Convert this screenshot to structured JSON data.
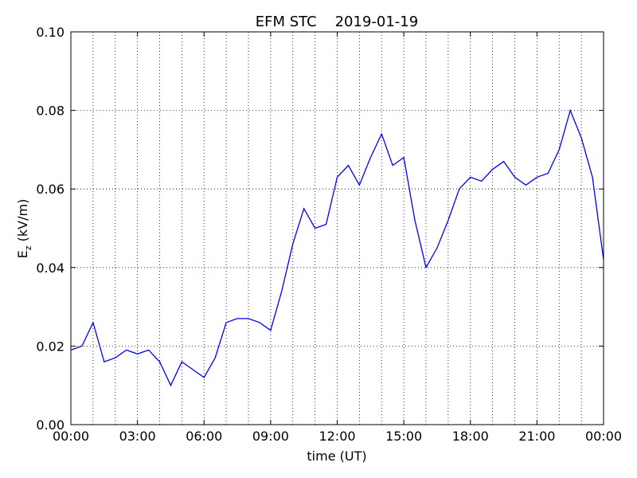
{
  "chart_data": {
    "type": "line",
    "title": "EFM STC    2019-01-19",
    "xlabel": "time (UT)",
    "ylabel": [
      "E",
      "z",
      " (kV/m)"
    ],
    "xlim": [
      0,
      24
    ],
    "ylim": [
      0,
      0.1
    ],
    "xticks": [
      {
        "value": 0,
        "label": "00:00"
      },
      {
        "value": 3,
        "label": "03:00"
      },
      {
        "value": 6,
        "label": "06:00"
      },
      {
        "value": 9,
        "label": "09:00"
      },
      {
        "value": 12,
        "label": "12:00"
      },
      {
        "value": 15,
        "label": "15:00"
      },
      {
        "value": 18,
        "label": "18:00"
      },
      {
        "value": 21,
        "label": "21:00"
      },
      {
        "value": 24,
        "label": "00:00"
      }
    ],
    "xgrid": [
      1,
      2,
      3,
      4,
      5,
      6,
      7,
      8,
      9,
      10,
      11,
      12,
      13,
      14,
      15,
      16,
      17,
      18,
      19,
      20,
      21,
      22,
      23
    ],
    "yticks": [
      {
        "value": 0,
        "label": "0.00"
      },
      0.02,
      0.04,
      0.06,
      0.08,
      {
        "value": 0.1,
        "label": "0.10"
      }
    ],
    "grid": true,
    "series": [
      {
        "name": "Ez",
        "color": "#0000ff",
        "x": [
          0,
          0.5,
          1,
          1.5,
          2,
          2.5,
          3,
          3.5,
          4,
          4.5,
          5,
          5.5,
          6,
          6.5,
          7,
          7.5,
          8,
          8.5,
          9,
          9.5,
          10,
          10.5,
          11,
          11.5,
          12,
          12.5,
          13,
          13.5,
          14,
          14.5,
          15,
          15.5,
          16,
          16.5,
          17,
          17.5,
          18,
          18.5,
          19,
          19.5,
          20,
          20.5,
          21,
          21.5,
          22,
          22.5,
          23,
          23.5,
          24
        ],
        "values": [
          0.019,
          0.02,
          0.026,
          0.016,
          0.017,
          0.019,
          0.018,
          0.019,
          0.016,
          0.01,
          0.016,
          0.014,
          0.012,
          0.017,
          0.026,
          0.027,
          0.027,
          0.026,
          0.024,
          0.034,
          0.046,
          0.055,
          0.05,
          0.051,
          0.063,
          0.066,
          0.061,
          0.068,
          0.074,
          0.066,
          0.068,
          0.052,
          0.04,
          0.045,
          0.052,
          0.06,
          0.063,
          0.062,
          0.065,
          0.067,
          0.063,
          0.061,
          0.063,
          0.064,
          0.07,
          0.08,
          0.073,
          0.063,
          0.042
        ]
      }
    ]
  }
}
